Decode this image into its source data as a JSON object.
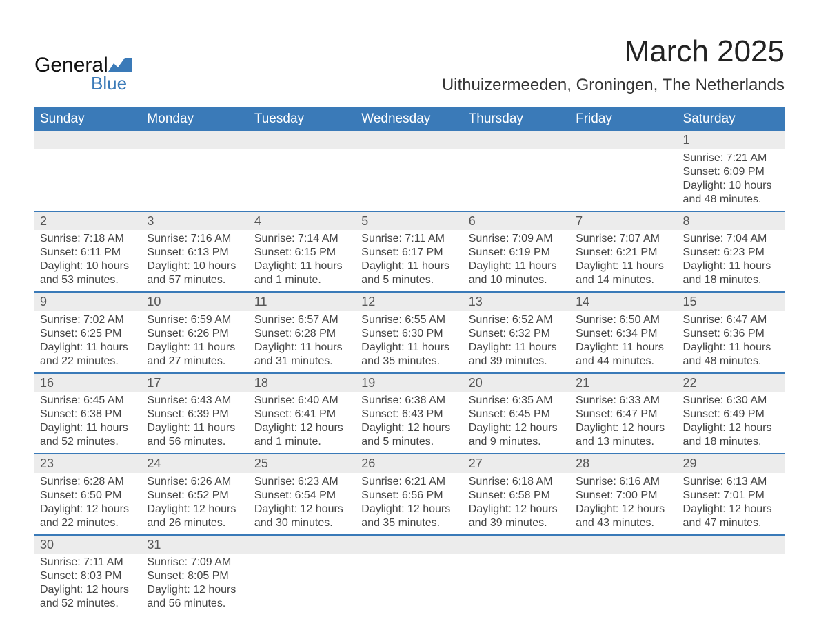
{
  "branding": {
    "logo_word1": "General",
    "logo_word2": "Blue",
    "logo_fill": "#3a7ab8"
  },
  "header": {
    "month_title": "March 2025",
    "location": "Uithuizermeeden, Groningen, The Netherlands"
  },
  "calendar": {
    "header_bg": "#3a7ab8",
    "header_fg": "#ffffff",
    "daynum_bg": "#ececec",
    "rule_color": "#3a7ab8",
    "text_color": "#444444",
    "day_headers": [
      "Sunday",
      "Monday",
      "Tuesday",
      "Wednesday",
      "Thursday",
      "Friday",
      "Saturday"
    ],
    "weeks": [
      {
        "nums": [
          "",
          "",
          "",
          "",
          "",
          "",
          "1"
        ],
        "cells": [
          null,
          null,
          null,
          null,
          null,
          null,
          {
            "sunrise": "Sunrise: 7:21 AM",
            "sunset": "Sunset: 6:09 PM",
            "day1": "Daylight: 10 hours",
            "day2": "and 48 minutes."
          }
        ]
      },
      {
        "nums": [
          "2",
          "3",
          "4",
          "5",
          "6",
          "7",
          "8"
        ],
        "cells": [
          {
            "sunrise": "Sunrise: 7:18 AM",
            "sunset": "Sunset: 6:11 PM",
            "day1": "Daylight: 10 hours",
            "day2": "and 53 minutes."
          },
          {
            "sunrise": "Sunrise: 7:16 AM",
            "sunset": "Sunset: 6:13 PM",
            "day1": "Daylight: 10 hours",
            "day2": "and 57 minutes."
          },
          {
            "sunrise": "Sunrise: 7:14 AM",
            "sunset": "Sunset: 6:15 PM",
            "day1": "Daylight: 11 hours",
            "day2": "and 1 minute."
          },
          {
            "sunrise": "Sunrise: 7:11 AM",
            "sunset": "Sunset: 6:17 PM",
            "day1": "Daylight: 11 hours",
            "day2": "and 5 minutes."
          },
          {
            "sunrise": "Sunrise: 7:09 AM",
            "sunset": "Sunset: 6:19 PM",
            "day1": "Daylight: 11 hours",
            "day2": "and 10 minutes."
          },
          {
            "sunrise": "Sunrise: 7:07 AM",
            "sunset": "Sunset: 6:21 PM",
            "day1": "Daylight: 11 hours",
            "day2": "and 14 minutes."
          },
          {
            "sunrise": "Sunrise: 7:04 AM",
            "sunset": "Sunset: 6:23 PM",
            "day1": "Daylight: 11 hours",
            "day2": "and 18 minutes."
          }
        ]
      },
      {
        "nums": [
          "9",
          "10",
          "11",
          "12",
          "13",
          "14",
          "15"
        ],
        "cells": [
          {
            "sunrise": "Sunrise: 7:02 AM",
            "sunset": "Sunset: 6:25 PM",
            "day1": "Daylight: 11 hours",
            "day2": "and 22 minutes."
          },
          {
            "sunrise": "Sunrise: 6:59 AM",
            "sunset": "Sunset: 6:26 PM",
            "day1": "Daylight: 11 hours",
            "day2": "and 27 minutes."
          },
          {
            "sunrise": "Sunrise: 6:57 AM",
            "sunset": "Sunset: 6:28 PM",
            "day1": "Daylight: 11 hours",
            "day2": "and 31 minutes."
          },
          {
            "sunrise": "Sunrise: 6:55 AM",
            "sunset": "Sunset: 6:30 PM",
            "day1": "Daylight: 11 hours",
            "day2": "and 35 minutes."
          },
          {
            "sunrise": "Sunrise: 6:52 AM",
            "sunset": "Sunset: 6:32 PM",
            "day1": "Daylight: 11 hours",
            "day2": "and 39 minutes."
          },
          {
            "sunrise": "Sunrise: 6:50 AM",
            "sunset": "Sunset: 6:34 PM",
            "day1": "Daylight: 11 hours",
            "day2": "and 44 minutes."
          },
          {
            "sunrise": "Sunrise: 6:47 AM",
            "sunset": "Sunset: 6:36 PM",
            "day1": "Daylight: 11 hours",
            "day2": "and 48 minutes."
          }
        ]
      },
      {
        "nums": [
          "16",
          "17",
          "18",
          "19",
          "20",
          "21",
          "22"
        ],
        "cells": [
          {
            "sunrise": "Sunrise: 6:45 AM",
            "sunset": "Sunset: 6:38 PM",
            "day1": "Daylight: 11 hours",
            "day2": "and 52 minutes."
          },
          {
            "sunrise": "Sunrise: 6:43 AM",
            "sunset": "Sunset: 6:39 PM",
            "day1": "Daylight: 11 hours",
            "day2": "and 56 minutes."
          },
          {
            "sunrise": "Sunrise: 6:40 AM",
            "sunset": "Sunset: 6:41 PM",
            "day1": "Daylight: 12 hours",
            "day2": "and 1 minute."
          },
          {
            "sunrise": "Sunrise: 6:38 AM",
            "sunset": "Sunset: 6:43 PM",
            "day1": "Daylight: 12 hours",
            "day2": "and 5 minutes."
          },
          {
            "sunrise": "Sunrise: 6:35 AM",
            "sunset": "Sunset: 6:45 PM",
            "day1": "Daylight: 12 hours",
            "day2": "and 9 minutes."
          },
          {
            "sunrise": "Sunrise: 6:33 AM",
            "sunset": "Sunset: 6:47 PM",
            "day1": "Daylight: 12 hours",
            "day2": "and 13 minutes."
          },
          {
            "sunrise": "Sunrise: 6:30 AM",
            "sunset": "Sunset: 6:49 PM",
            "day1": "Daylight: 12 hours",
            "day2": "and 18 minutes."
          }
        ]
      },
      {
        "nums": [
          "23",
          "24",
          "25",
          "26",
          "27",
          "28",
          "29"
        ],
        "cells": [
          {
            "sunrise": "Sunrise: 6:28 AM",
            "sunset": "Sunset: 6:50 PM",
            "day1": "Daylight: 12 hours",
            "day2": "and 22 minutes."
          },
          {
            "sunrise": "Sunrise: 6:26 AM",
            "sunset": "Sunset: 6:52 PM",
            "day1": "Daylight: 12 hours",
            "day2": "and 26 minutes."
          },
          {
            "sunrise": "Sunrise: 6:23 AM",
            "sunset": "Sunset: 6:54 PM",
            "day1": "Daylight: 12 hours",
            "day2": "and 30 minutes."
          },
          {
            "sunrise": "Sunrise: 6:21 AM",
            "sunset": "Sunset: 6:56 PM",
            "day1": "Daylight: 12 hours",
            "day2": "and 35 minutes."
          },
          {
            "sunrise": "Sunrise: 6:18 AM",
            "sunset": "Sunset: 6:58 PM",
            "day1": "Daylight: 12 hours",
            "day2": "and 39 minutes."
          },
          {
            "sunrise": "Sunrise: 6:16 AM",
            "sunset": "Sunset: 7:00 PM",
            "day1": "Daylight: 12 hours",
            "day2": "and 43 minutes."
          },
          {
            "sunrise": "Sunrise: 6:13 AM",
            "sunset": "Sunset: 7:01 PM",
            "day1": "Daylight: 12 hours",
            "day2": "and 47 minutes."
          }
        ]
      },
      {
        "nums": [
          "30",
          "31",
          "",
          "",
          "",
          "",
          ""
        ],
        "cells": [
          {
            "sunrise": "Sunrise: 7:11 AM",
            "sunset": "Sunset: 8:03 PM",
            "day1": "Daylight: 12 hours",
            "day2": "and 52 minutes."
          },
          {
            "sunrise": "Sunrise: 7:09 AM",
            "sunset": "Sunset: 8:05 PM",
            "day1": "Daylight: 12 hours",
            "day2": "and 56 minutes."
          },
          null,
          null,
          null,
          null,
          null
        ]
      }
    ]
  }
}
